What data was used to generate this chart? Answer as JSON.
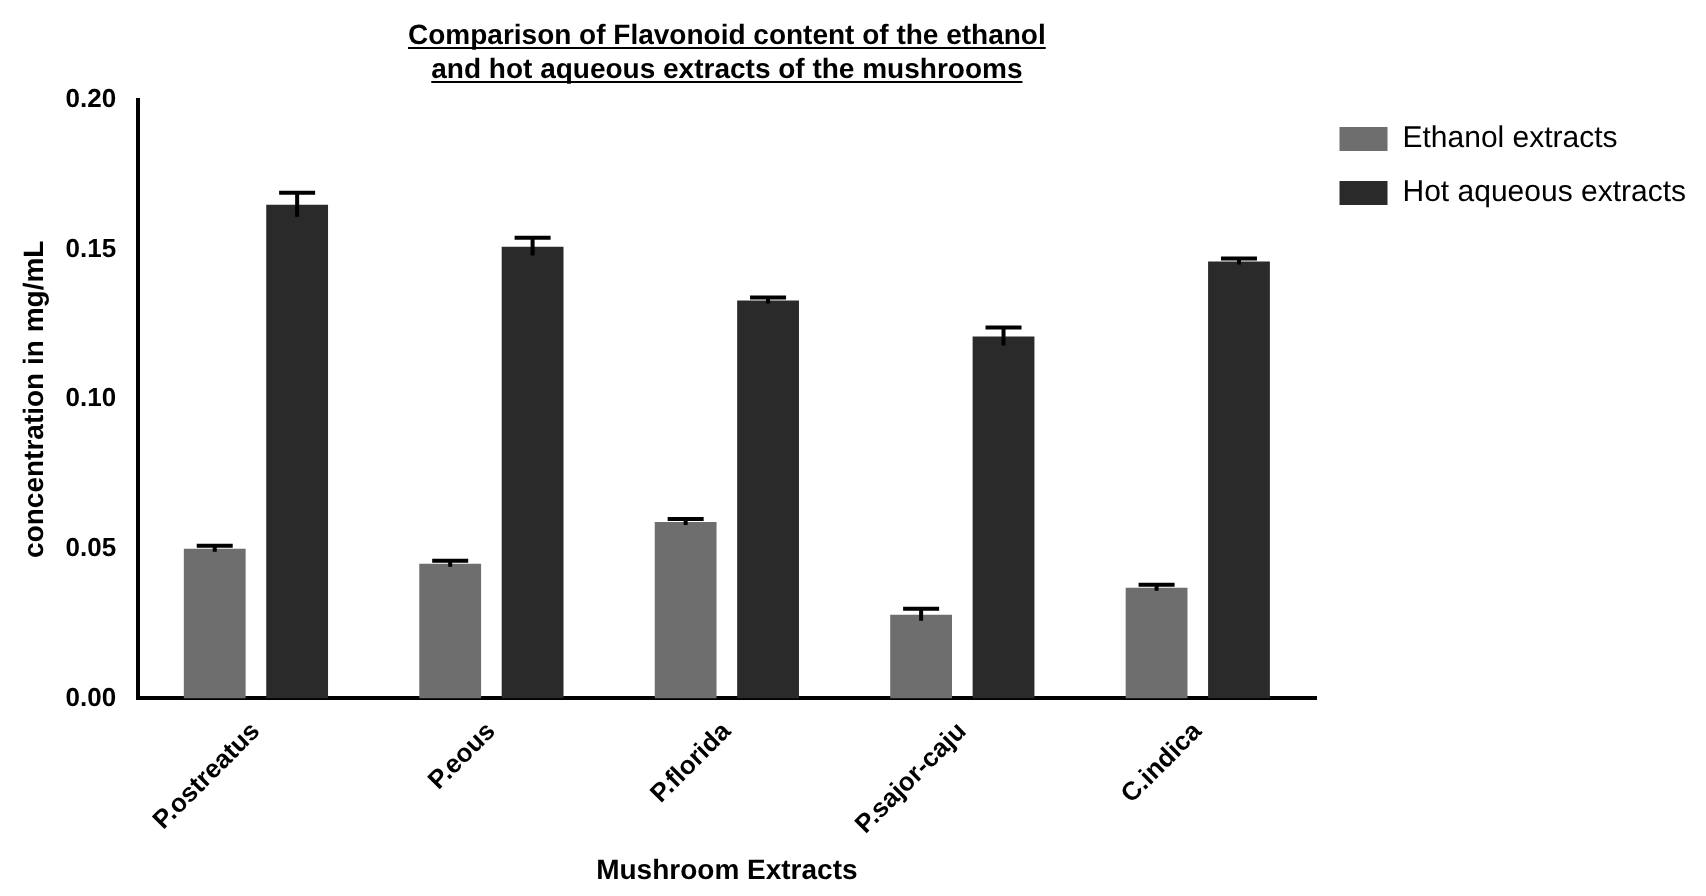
{
  "chart_data": {
    "type": "bar",
    "title": "Comparison of Flavonoid content of the ethanol and hot aqueous extracts of the mushrooms",
    "xlabel": "Mushroom Extracts",
    "ylabel": "concentration in mg/mL",
    "categories": [
      "P.ostreatus",
      "P.eous",
      "P.florida",
      "P.sajor-caju",
      "C.indica"
    ],
    "series": [
      {
        "name": "Ethanol extracts",
        "color": "#6e6e6e",
        "values": [
          0.05,
          0.045,
          0.059,
          0.028,
          0.037
        ],
        "errors": [
          0.001,
          0.001,
          0.001,
          0.002,
          0.001
        ]
      },
      {
        "name": "Hot aqueous extracts",
        "color": "#2a2a2a",
        "values": [
          0.165,
          0.151,
          0.133,
          0.121,
          0.146
        ],
        "errors": [
          0.004,
          0.003,
          0.001,
          0.003,
          0.001
        ]
      }
    ],
    "ylim": [
      0,
      0.2
    ],
    "yticks": [
      {
        "value": 0,
        "label": "0.00"
      },
      0.05,
      {
        "value": 0.1,
        "label": "0.10"
      },
      0.15,
      {
        "value": 0.2,
        "label": "0.20"
      }
    ],
    "grid": false,
    "legend": "top right"
  }
}
